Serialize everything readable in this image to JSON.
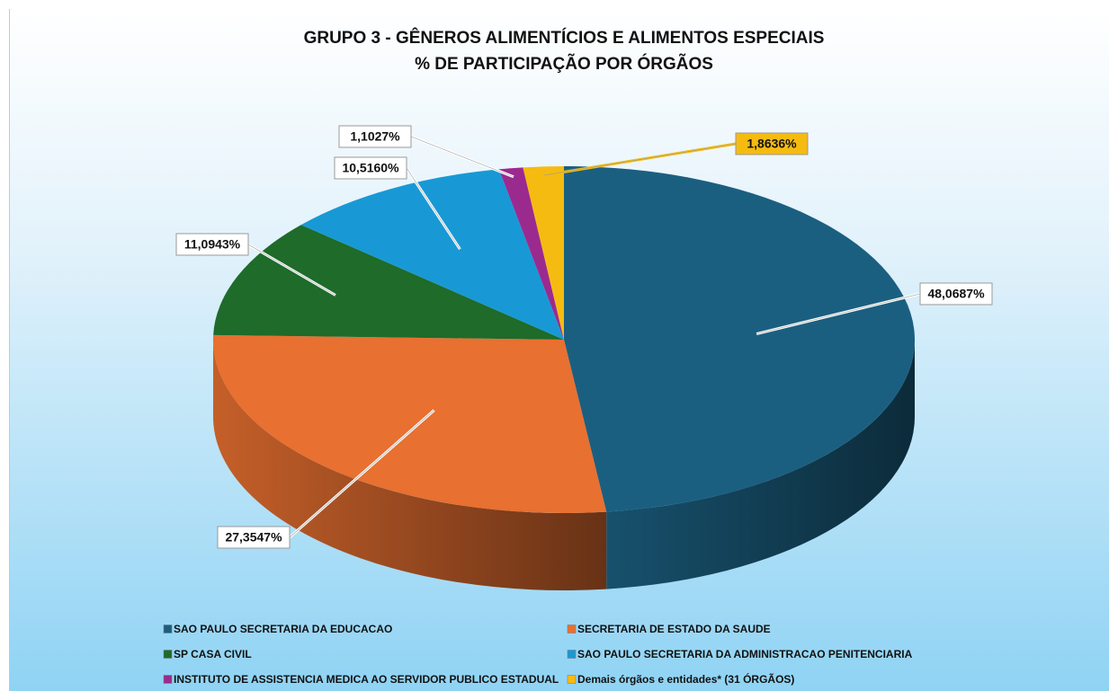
{
  "chart_data": {
    "type": "pie3d",
    "title": "GRUPO 3 - GÊNEROS ALIMENTÍCIOS E ALIMENTOS ESPECIAIS",
    "subtitle": "% DE PARTICIPAÇÃO POR ÓRGÃOS",
    "categories": [
      "SAO PAULO SECRETARIA DA EDUCACAO",
      "SECRETARIA DE ESTADO DA SAUDE",
      "SP CASA CIVIL",
      "SAO PAULO SECRETARIA DA ADMINISTRACAO PENITENCIARIA",
      "INSTITUTO DE ASSISTENCIA MEDICA AO SERVIDOR PUBLICO ESTADUAL",
      "Demais órgãos e entidades* (31 ÓRGÃOS)"
    ],
    "values": [
      48.0687,
      27.3547,
      11.0943,
      10.516,
      1.1027,
      1.8636
    ],
    "value_labels": [
      "48,0687%",
      "27,3547%",
      "11,0943%",
      "10,5160%",
      "1,1027%",
      "1,8636%"
    ],
    "colors": [
      "#1b5f80",
      "#e87030",
      "#1e6b2a",
      "#1899d5",
      "#9b2a8f",
      "#f6bb10"
    ],
    "legend": "bottom"
  }
}
